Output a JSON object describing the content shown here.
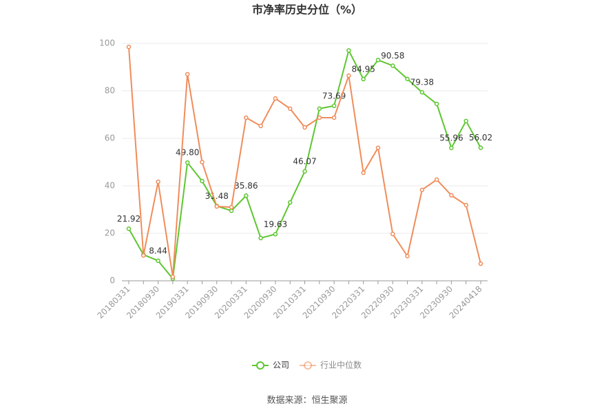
{
  "chart_data": {
    "type": "line",
    "title": "市净率历史分位（%）",
    "categories": [
      "20180331",
      null,
      "20180930",
      null,
      "20190331",
      null,
      "20190930",
      null,
      "20200331",
      null,
      "20200930",
      null,
      "20210331",
      null,
      "20210930",
      null,
      "20220331",
      null,
      "20220930",
      null,
      "20230331",
      null,
      "20230930",
      null,
      "20240418"
    ],
    "series": [
      {
        "name": "公司",
        "color": "#5cc72f",
        "values": [
          21.92,
          11,
          8.44,
          0.9,
          49.8,
          42,
          31.48,
          29.5,
          35.86,
          18,
          19.63,
          33,
          46.07,
          72.5,
          73.69,
          97,
          84.95,
          93,
          90.58,
          85,
          79.38,
          74.5,
          55.96,
          67.3,
          56.02
        ],
        "value_labels": [
          "21.92",
          null,
          "8.44",
          null,
          "49.80",
          null,
          "31.48",
          null,
          "35.86",
          null,
          "19.63",
          null,
          "46.07",
          null,
          "73.69",
          null,
          "84.95",
          null,
          "90.58",
          null,
          "79.38",
          null,
          "55.96",
          null,
          "56.02"
        ]
      },
      {
        "name": "行业中位数",
        "color": "#f08c5a",
        "values": [
          98.5,
          10.7,
          41.7,
          1.7,
          87,
          50,
          31.3,
          31,
          68.7,
          65.2,
          76.8,
          72.5,
          64.6,
          68.7,
          68.7,
          86.4,
          45.5,
          56,
          19.7,
          10.4,
          38.3,
          42.6,
          36,
          31.9,
          7.2
        ]
      }
    ],
    "ylim": [
      0,
      100
    ],
    "yticks": [
      0,
      20,
      40,
      60,
      80,
      100
    ],
    "grid": true,
    "source": "数据来源：恒生聚源"
  }
}
